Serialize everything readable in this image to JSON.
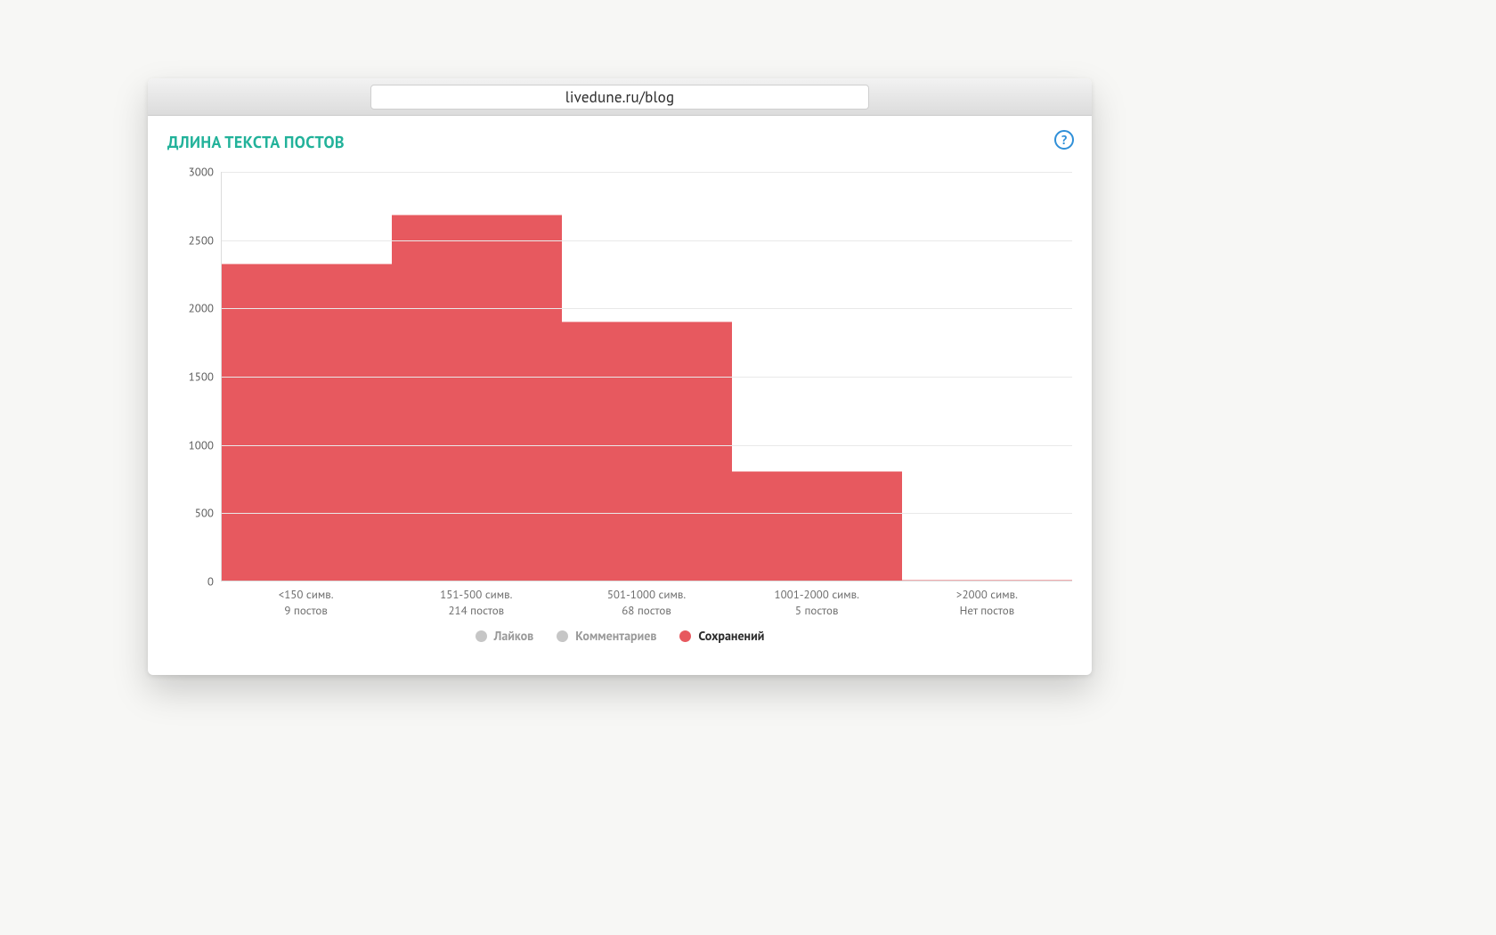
{
  "browser": {
    "url": "livedune.ru/blog"
  },
  "card": {
    "title": "ДЛИНА ТЕКСТА ПОСТОВ",
    "title_color": "#22b29a",
    "help_glyph": "?"
  },
  "chart": {
    "type": "bar",
    "ylim": [
      0,
      3000
    ],
    "ytick_step": 500,
    "yticks": [
      0,
      500,
      1000,
      1500,
      2000,
      2500,
      3000
    ],
    "grid_color": "#e9e9e9",
    "axis_color": "#dcdcdc",
    "background_color": "#ffffff",
    "bar_color": "#e7595f",
    "bar_width": 1.0,
    "label_color": "#6e6e6e",
    "label_fontsize": 13,
    "categories": [
      {
        "line1": "<150 симв.",
        "line2": "9 постов",
        "value": 2320
      },
      {
        "line1": "151-500 симв.",
        "line2": "214 постов",
        "value": 2680
      },
      {
        "line1": "501-1000 симв.",
        "line2": "68 постов",
        "value": 1900
      },
      {
        "line1": "1001-2000 симв.",
        "line2": "5 постов",
        "value": 800
      },
      {
        "line1": ">2000 симв.",
        "line2": "Нет постов",
        "value": 0
      }
    ]
  },
  "legend": {
    "inactive_color": "#c6c6c6",
    "items": [
      {
        "label": "Лайков",
        "color": "#c6c6c6",
        "active": false
      },
      {
        "label": "Комментариев",
        "color": "#c6c6c6",
        "active": false
      },
      {
        "label": "Сохранений",
        "color": "#e7595f",
        "active": true
      }
    ]
  }
}
